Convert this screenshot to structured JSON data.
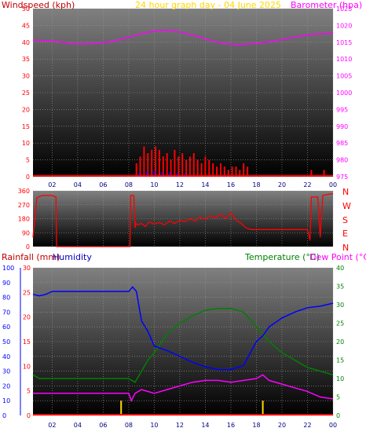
{
  "colors": {
    "wind": "#ff0000",
    "gust": "#ff0000",
    "barometer": "#ff00ff",
    "direction": "#ff0000",
    "rain": "#ff0000",
    "humidity": "#0000ff",
    "temperature": "#008000",
    "dewpoint": "#ff00ff",
    "header": "#ffd700",
    "bg_top": "#7a7a7a",
    "bg_bottom": "#000000"
  },
  "chart_data": [
    {
      "type": "line",
      "title": "24 hour graph day - 04 June 2025",
      "x_ticks": [
        "02",
        "04",
        "06",
        "08",
        "10",
        "12",
        "14",
        "16",
        "18",
        "20",
        "22",
        "00"
      ],
      "y_left_label": "Windspeed (kph)",
      "y_left_ticks": [
        "0",
        "5",
        "10",
        "15",
        "20",
        "25",
        "30",
        "35",
        "40",
        "45",
        "50"
      ],
      "y_left_range": [
        0,
        50
      ],
      "y_right_label": "Barometer (hpa)",
      "y_right_ticks": [
        "975",
        "980",
        "985",
        "990",
        "995",
        "1000",
        "1005",
        "1010",
        "1015",
        "1020",
        "1025"
      ],
      "y_right_range": [
        975,
        1025
      ],
      "x_range": [
        0.5,
        24
      ],
      "series": [
        {
          "axis": "right",
          "kind": "line",
          "x": [
            0.5,
            1.5,
            2.5,
            3.5,
            4.5,
            5.5,
            6.5,
            7.5,
            8.5,
            9.5,
            10.5,
            11.5,
            12.5,
            13.5,
            14.5,
            15.5,
            16.5,
            17.5,
            18.5,
            19.5,
            20.5,
            21.5,
            22.5,
            23.5,
            24
          ],
          "values": [
            1015.6,
            1015.5,
            1015.2,
            1014.6,
            1014.5,
            1014.7,
            1015.1,
            1016.0,
            1017.0,
            1018.0,
            1018.6,
            1018.4,
            1017.6,
            1016.6,
            1015.5,
            1014.6,
            1014.3,
            1014.5,
            1014.9,
            1015.5,
            1016.2,
            1016.9,
            1017.4,
            1017.6,
            1017.7
          ]
        },
        {
          "axis": "left",
          "kind": "bars",
          "x": [
            8.6,
            8.9,
            9.2,
            9.5,
            9.8,
            10.1,
            10.4,
            10.7,
            11.0,
            11.3,
            11.6,
            11.9,
            12.2,
            12.5,
            12.8,
            13.1,
            13.4,
            13.7,
            14.0,
            14.3,
            14.6,
            14.9,
            15.2,
            15.5,
            15.8,
            16.1,
            16.4,
            16.7,
            17.0,
            17.3,
            22.3,
            23.3
          ],
          "values": [
            4,
            6,
            9,
            7,
            8,
            9,
            8,
            6,
            7,
            5,
            8,
            6,
            7,
            5,
            6,
            7,
            5,
            4,
            6,
            5,
            4,
            3,
            4,
            3,
            2,
            3,
            3,
            2,
            4,
            3,
            2,
            2
          ]
        },
        {
          "axis": "left",
          "kind": "bars",
          "x": [
            8.8,
            9.4,
            10.0,
            10.6,
            11.2,
            11.8,
            12.4
          ],
          "values": [
            1.2,
            1.5,
            1.8,
            1.4,
            1.6,
            1.2,
            1.0
          ]
        },
        {
          "axis": "left",
          "kind": "line",
          "x": [
            0.5,
            24
          ],
          "values": [
            0.3,
            0.3
          ]
        }
      ]
    },
    {
      "type": "line",
      "title": "",
      "y_left_ticks": [
        "0",
        "90",
        "180",
        "270",
        "360"
      ],
      "y_left_range": [
        0,
        360
      ],
      "y_right_ticks": [
        "N",
        "W",
        "S",
        "E",
        "N"
      ],
      "x_range": [
        0.5,
        24
      ],
      "series": [
        {
          "axis": "left",
          "x": [
            0.5,
            0.8,
            1.2,
            2.0,
            2.3,
            2.35,
            3,
            4,
            5,
            6,
            7,
            8,
            8.1,
            8.15,
            8.4,
            8.5,
            8.55,
            8.7,
            9,
            9.3,
            9.6,
            10,
            10.4,
            10.8,
            11.2,
            11.6,
            12,
            12.4,
            12.8,
            13.2,
            13.6,
            14,
            14.4,
            14.8,
            15.2,
            15.6,
            16,
            16.4,
            16.8,
            17.2,
            17.6,
            18,
            19,
            20,
            21,
            22,
            22.2,
            22.3,
            22.8,
            23,
            23.2,
            23.5,
            23.8,
            24
          ],
          "values": [
            60,
            315,
            330,
            330,
            320,
            0,
            0,
            0,
            0,
            0,
            0,
            0,
            0,
            330,
            330,
            120,
            150,
            140,
            150,
            130,
            160,
            145,
            155,
            140,
            165,
            150,
            170,
            160,
            180,
            165,
            190,
            175,
            200,
            185,
            210,
            180,
            220,
            170,
            150,
            120,
            110,
            110,
            110,
            110,
            110,
            110,
            40,
            320,
            320,
            60,
            330,
            335,
            340,
            340
          ]
        }
      ]
    },
    {
      "type": "line",
      "title": "",
      "x_ticks": [
        "02",
        "04",
        "06",
        "08",
        "10",
        "12",
        "14",
        "16",
        "18",
        "20",
        "22",
        "00"
      ],
      "y_left_label": "Rainfall (mm)",
      "y_left_ticks": [
        "0",
        "10",
        "20",
        "30",
        "40",
        "50",
        "60",
        "70",
        "80",
        "90",
        "100"
      ],
      "y_left_range": [
        0,
        100
      ],
      "y_left2_label": "Humidity",
      "y_left2_ticks": [
        "0",
        "5",
        "10",
        "15",
        "20",
        "25",
        "30"
      ],
      "y_left2_range": [
        0,
        30
      ],
      "y_right_label": "Temperature (°C)",
      "y_right2_label": "Dew Point (°C)",
      "y_right_ticks": [
        "0",
        "5",
        "10",
        "15",
        "20",
        "25",
        "30",
        "35",
        "40"
      ],
      "y_right_range": [
        0,
        40
      ],
      "x_range": [
        0.5,
        24
      ],
      "series": [
        {
          "axis": "left",
          "x": [
            0.5,
            1,
            1.5,
            2,
            2.5,
            3,
            4,
            5,
            6,
            7,
            8,
            8.3,
            8.6,
            9,
            9.5,
            10,
            11,
            12,
            13,
            14,
            15,
            15.5,
            16,
            17,
            17.5,
            18,
            18.5,
            19,
            20,
            21,
            22,
            23,
            24
          ],
          "values": [
            82,
            81,
            82,
            84,
            84,
            84,
            84,
            84,
            84,
            84,
            84,
            87,
            84,
            64,
            57,
            47,
            44,
            40,
            36,
            33,
            31,
            31,
            31,
            34,
            42,
            50,
            54,
            60,
            66,
            70,
            73,
            74,
            76
          ]
        },
        {
          "axis": "right",
          "x": [
            0.5,
            1,
            2,
            3,
            4,
            5,
            6,
            7,
            8,
            8.5,
            9,
            9.5,
            10,
            11,
            12,
            13,
            14,
            15,
            16,
            16.5,
            17,
            18,
            19,
            20,
            21,
            22,
            23,
            24
          ],
          "values": [
            11,
            10,
            10,
            10,
            10,
            10,
            10,
            10,
            10,
            9,
            12,
            15,
            17,
            22,
            25,
            27,
            28.5,
            29,
            29,
            28.5,
            28,
            24,
            20,
            17,
            15,
            13,
            12,
            11
          ]
        },
        {
          "axis": "right",
          "x": [
            0.5,
            1,
            2,
            3,
            4,
            5,
            6,
            7,
            8,
            8.2,
            8.5,
            9,
            10,
            11,
            12,
            13,
            14,
            15,
            16,
            17,
            18,
            18.5,
            19,
            20,
            21,
            22,
            23,
            24
          ],
          "values": [
            6,
            6,
            6,
            6,
            6,
            6,
            6,
            6,
            6,
            4,
            6,
            7,
            6,
            7,
            8,
            9,
            9.5,
            9.5,
            9,
            9.5,
            10,
            11,
            9.5,
            8.5,
            7.5,
            6.5,
            5,
            4.5
          ]
        },
        {
          "axis": "left",
          "kind": "bars",
          "x": [
            7.4,
            18.5
          ],
          "values": [
            10,
            10
          ]
        },
        {
          "axis": "left",
          "kind": "line",
          "x": [
            0.5,
            24
          ],
          "values": [
            0.5,
            0.5
          ]
        }
      ]
    }
  ]
}
